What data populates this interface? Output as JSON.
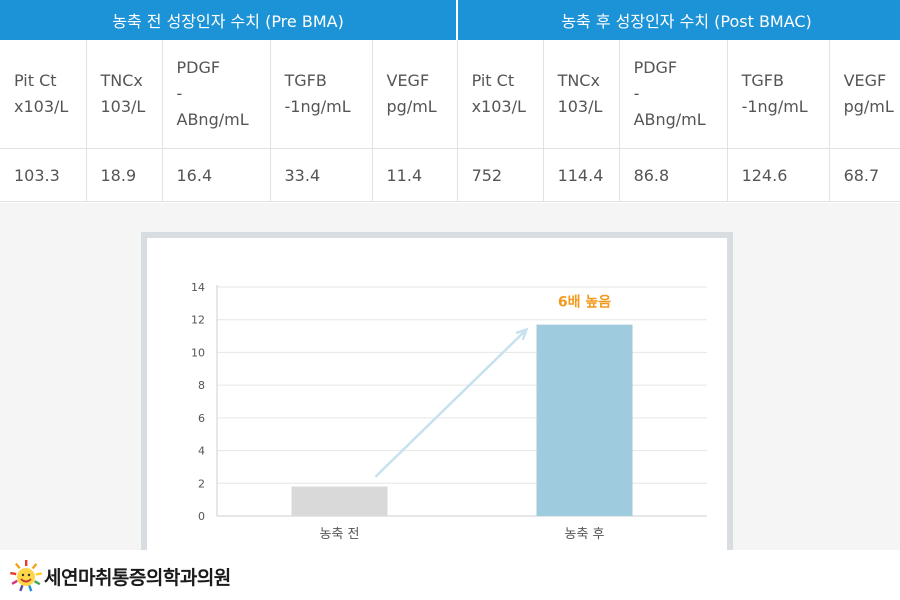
{
  "table": {
    "groups": [
      "농축 전 성장인자 수치 (Pre BMA)",
      "농축 후 성장인자 수치 (Post BMAC)"
    ],
    "columns": [
      "Pit Ct\nx103/L",
      "TNCx\n103/L",
      "PDGF\n-\nABng/mL",
      "TGFB\n-1ng/mL",
      "VEGF\npg/mL",
      "Pit Ct\nx103/L",
      "TNCx\n103/L",
      "PDGF\n-\nABng/mL",
      "TGFB\n-1ng/mL",
      "VEGF\npg/mL"
    ],
    "values": [
      "103.3",
      "18.9",
      "16.4",
      "33.4",
      "11.4",
      "752",
      "114.4",
      "86.8",
      "124.6",
      "68.7"
    ]
  },
  "chart_data": {
    "type": "bar",
    "categories": [
      "농축 전",
      "농축 후"
    ],
    "values": [
      1.8,
      11.7
    ],
    "ylim": [
      0,
      14
    ],
    "yticks": [
      "0",
      "2",
      "4",
      "6",
      "8",
      "10",
      "12",
      "14"
    ],
    "title": "",
    "xlabel": "",
    "ylabel": "",
    "grid": true,
    "annotation": "6배 높음",
    "colors": {
      "bar_before": "#d9d9d9",
      "bar_after": "#9ecbdd",
      "arrow": "#c6e2ee",
      "annotation": "#f39a1e",
      "grid": "#e6e6e6",
      "axis": "#555555"
    }
  },
  "logo": {
    "name": "세연마취통증의학과의원",
    "icon": "sun-face-logo-icon"
  },
  "colors": {
    "header_bg": "#1c93d6",
    "band_bg": "#f5f5f5"
  }
}
